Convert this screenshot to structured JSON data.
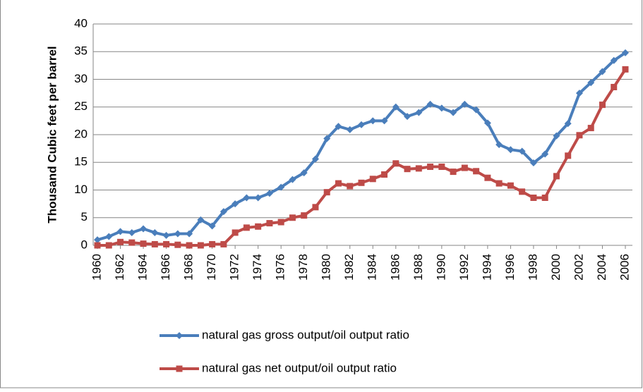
{
  "chart_data": {
    "type": "line",
    "y_label": "Thousand Cubic  feet per barrel",
    "x": [
      1960,
      1961,
      1962,
      1963,
      1964,
      1965,
      1966,
      1967,
      1968,
      1969,
      1970,
      1971,
      1972,
      1973,
      1974,
      1975,
      1976,
      1977,
      1978,
      1979,
      1980,
      1981,
      1982,
      1983,
      1984,
      1985,
      1986,
      1987,
      1988,
      1989,
      1990,
      1991,
      1992,
      1993,
      1994,
      1995,
      1996,
      1997,
      1998,
      1999,
      2000,
      2001,
      2002,
      2003,
      2004,
      2005,
      2006
    ],
    "xlim": [
      1960,
      2006
    ],
    "xticks": [
      1960,
      1962,
      1964,
      1966,
      1968,
      1970,
      1972,
      1974,
      1976,
      1978,
      1980,
      1982,
      1984,
      1986,
      1988,
      1990,
      1992,
      1994,
      1996,
      1998,
      2000,
      2002,
      2004,
      2006
    ],
    "ylim": [
      0,
      40
    ],
    "yticks": [
      0,
      5,
      10,
      15,
      20,
      25,
      30,
      35,
      40
    ],
    "grid": true,
    "legend": "bottom",
    "series": [
      {
        "name": "natural gas gross output/oil  output ratio",
        "color": "#4a7ebb",
        "marker": "diamond",
        "values": [
          1.0,
          1.6,
          2.5,
          2.3,
          3.0,
          2.3,
          1.8,
          2.1,
          2.1,
          4.6,
          3.5,
          6.1,
          7.5,
          8.6,
          8.6,
          9.4,
          10.5,
          11.9,
          13.1,
          15.6,
          19.3,
          21.5,
          20.9,
          21.8,
          22.5,
          22.5,
          25.0,
          23.3,
          24.0,
          25.5,
          24.8,
          24.0,
          25.5,
          24.5,
          22.1,
          18.2,
          17.3,
          17.0,
          14.9,
          16.5,
          19.8,
          22.0,
          27.5,
          29.4,
          31.4,
          33.4,
          34.8
        ]
      },
      {
        "name": "natural gas net output/oil output ratio",
        "color": "#be4b48",
        "marker": "square",
        "values": [
          0,
          0,
          0.6,
          0.5,
          0.3,
          0.2,
          0.2,
          0.1,
          0,
          0,
          0.2,
          0.2,
          2.3,
          3.2,
          3.4,
          4.0,
          4.2,
          5.0,
          5.4,
          6.9,
          9.6,
          11.2,
          10.7,
          11.3,
          12.0,
          12.8,
          14.8,
          13.8,
          13.9,
          14.2,
          14.2,
          13.3,
          14.0,
          13.4,
          12.2,
          11.2,
          10.8,
          9.7,
          8.6,
          8.6,
          12.5,
          16.2,
          19.9,
          21.2,
          25.4,
          28.6,
          31.8
        ]
      }
    ]
  }
}
